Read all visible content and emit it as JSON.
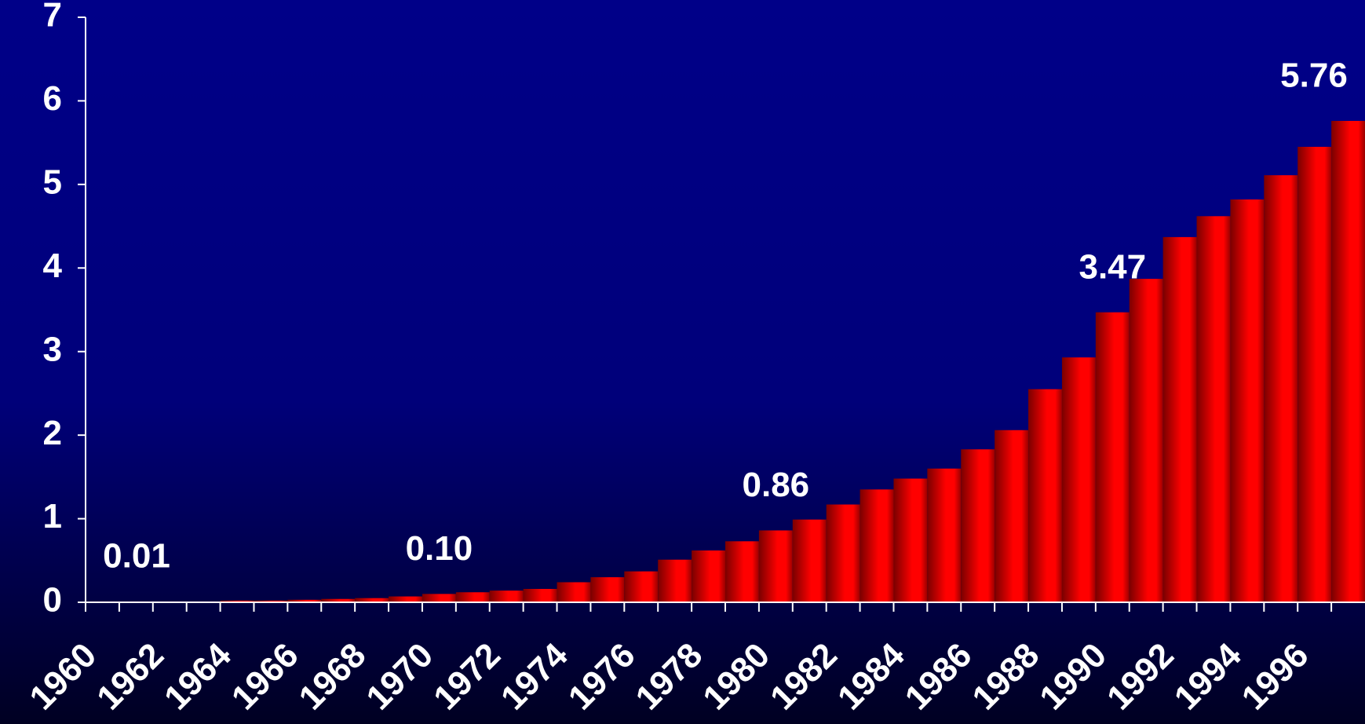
{
  "chart_data": {
    "type": "bar",
    "categories": [
      "1960",
      null,
      "1962",
      null,
      "1964",
      null,
      "1966",
      null,
      "1968",
      null,
      "1970",
      null,
      "1972",
      null,
      "1974",
      null,
      "1976",
      null,
      "1978",
      null,
      "1980",
      null,
      "1982",
      null,
      "1984",
      null,
      "1986",
      null,
      "1988",
      null,
      "1990",
      null,
      "1992",
      null,
      "1994",
      null,
      "1996",
      null
    ],
    "values": [
      0.01,
      0.01,
      0.01,
      0.01,
      0.02,
      0.02,
      0.03,
      0.04,
      0.05,
      0.07,
      0.1,
      0.12,
      0.14,
      0.16,
      0.24,
      0.3,
      0.37,
      0.51,
      0.62,
      0.73,
      0.86,
      0.99,
      1.17,
      1.35,
      1.48,
      1.6,
      1.83,
      2.06,
      2.55,
      2.93,
      3.47,
      3.87,
      4.37,
      4.62,
      4.82,
      5.11,
      5.45,
      5.76
    ],
    "value_labels": [
      "0.01",
      null,
      null,
      null,
      null,
      null,
      null,
      null,
      null,
      null,
      "0.10",
      null,
      null,
      null,
      null,
      null,
      null,
      null,
      null,
      null,
      "0.86",
      null,
      null,
      null,
      null,
      null,
      null,
      null,
      null,
      null,
      "3.47",
      null,
      null,
      null,
      null,
      null,
      null,
      "5.76"
    ],
    "color": "#ff0000",
    "ylim": [
      0,
      7
    ],
    "yticks": [
      0,
      1,
      2,
      3,
      4,
      5,
      6,
      7
    ]
  }
}
